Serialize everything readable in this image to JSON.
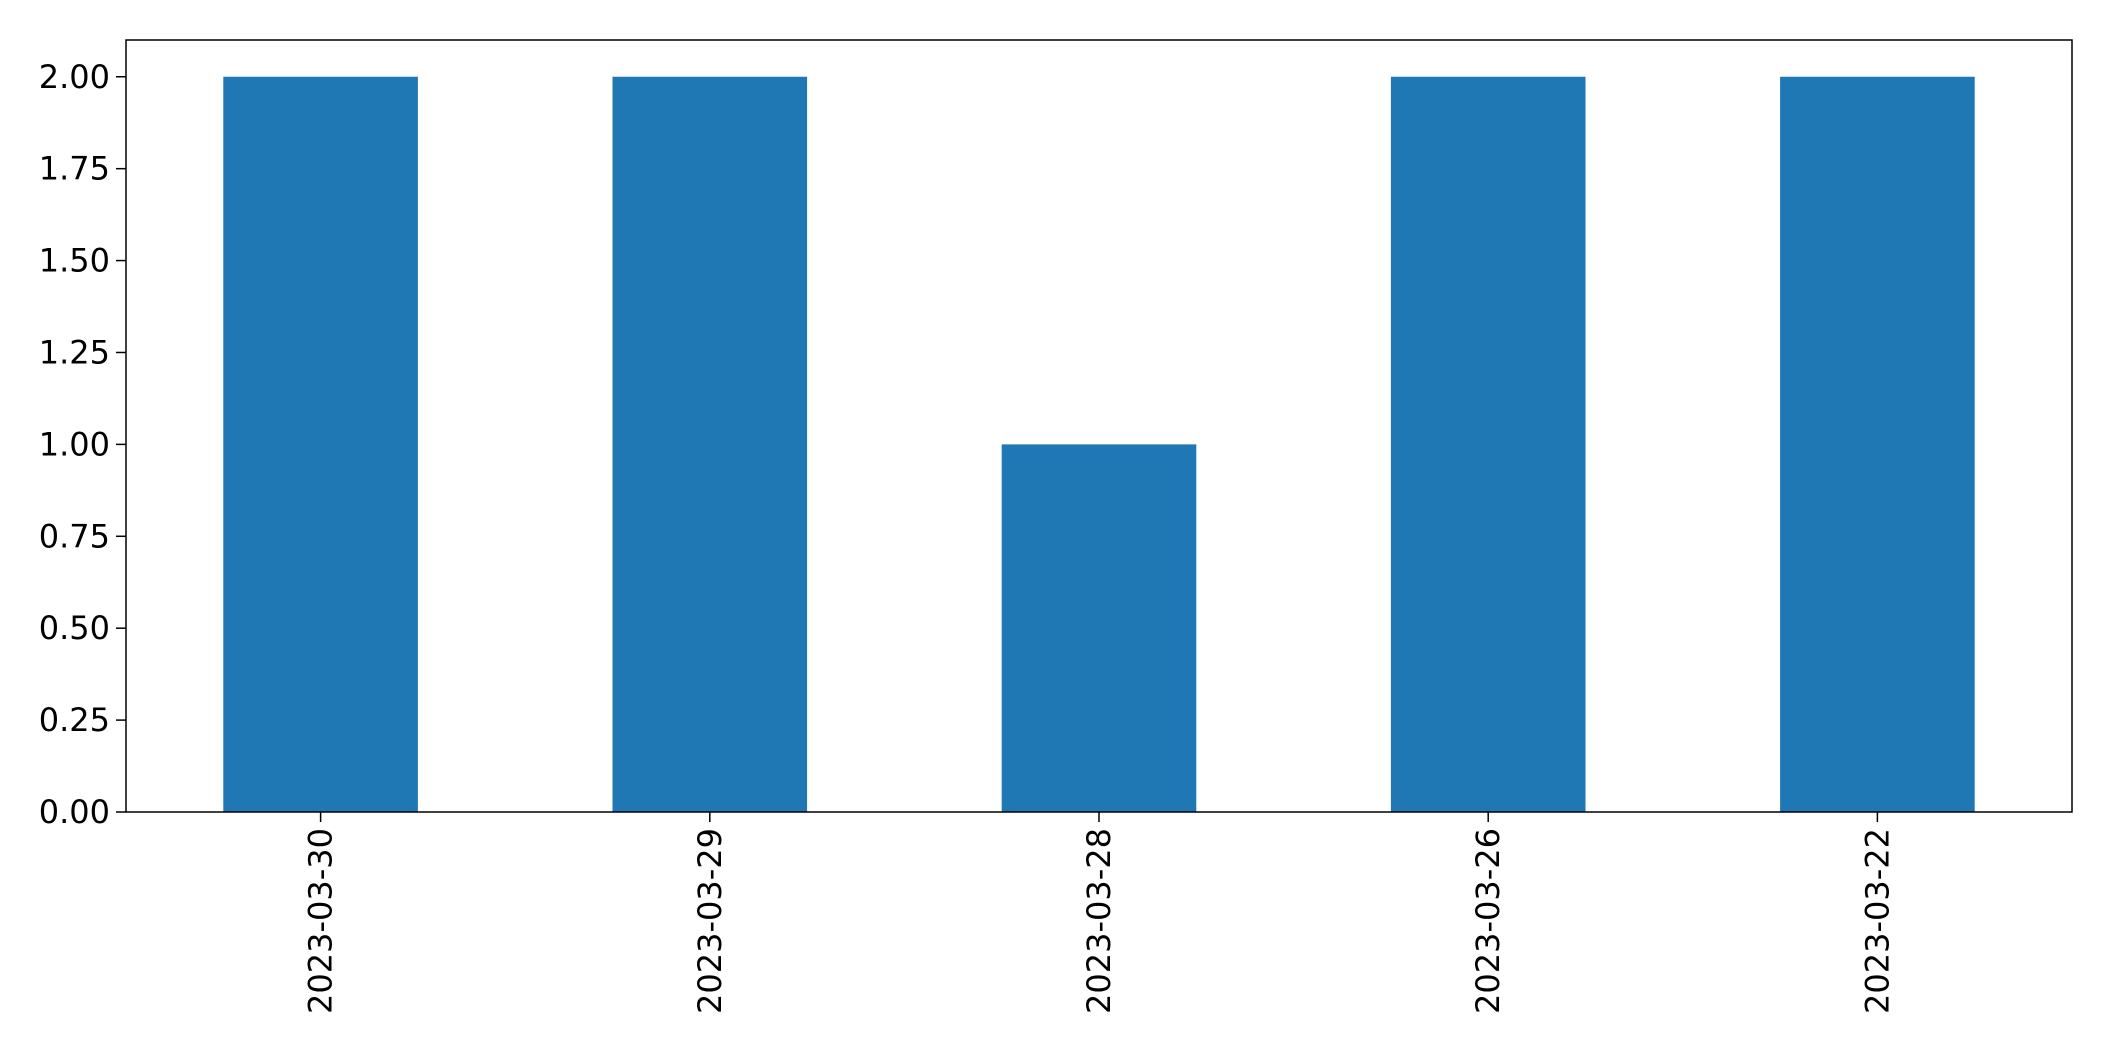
{
  "chart_data": {
    "type": "bar",
    "title": "",
    "xlabel": "",
    "ylabel": "",
    "categories": [
      "2023-03-30",
      "2023-03-29",
      "2023-03-28",
      "2023-03-26",
      "2023-03-22"
    ],
    "series": [
      {
        "values": [
          2,
          2,
          1,
          2,
          2
        ]
      }
    ],
    "ylim": [
      0,
      2.1
    ],
    "yticks": [
      0.0,
      0.25,
      0.5,
      0.75,
      1.0,
      1.25,
      1.5,
      1.75,
      2.0
    ],
    "ytick_labels": [
      "0.00",
      "0.25",
      "0.50",
      "0.75",
      "1.00",
      "1.25",
      "1.50",
      "1.75",
      "2.00"
    ],
    "bar_color": "#1f77b4",
    "grid": false,
    "legend": false,
    "xtick_rotation": "vertical"
  }
}
